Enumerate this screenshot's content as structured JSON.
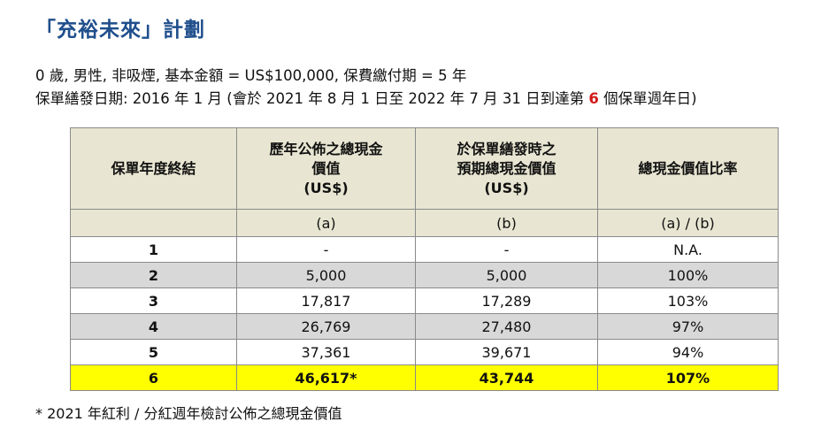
{
  "title": "「充裕未來」計劃",
  "description": {
    "line1": "0 歲, 男性, 非吸煙, 基本金額 = US$100,000, 保費繳付期 = 5 年",
    "line2_before": "保單繕發日期: 2016 年 1 月 (會於 2021 年 8 月 1 日至 2022 年 7 月 31 日到達第 ",
    "line2_highlight": "6",
    "line2_after": " 個保單週年日)"
  },
  "table": {
    "headers": [
      [
        "保單年度終結"
      ],
      [
        "歷年公佈之總現金",
        "價值",
        "(US$)"
      ],
      [
        "於保單繕發時之",
        "預期總現金價值",
        "(US$)"
      ],
      [
        "總現金價值比率"
      ]
    ],
    "subheaders": [
      "",
      "(a)",
      "(b)",
      "(a) / (b)"
    ],
    "rows": [
      {
        "year": "1",
        "declared": "-",
        "projected": "-",
        "ratio": "N.A."
      },
      {
        "year": "2",
        "declared": "5,000",
        "projected": "5,000",
        "ratio": "100%"
      },
      {
        "year": "3",
        "declared": "17,817",
        "projected": "17,289",
        "ratio": "103%"
      },
      {
        "year": "4",
        "declared": "26,769",
        "projected": "27,480",
        "ratio": "97%"
      },
      {
        "year": "5",
        "declared": "37,361",
        "projected": "39,671",
        "ratio": "94%"
      },
      {
        "year": "6",
        "declared": "46,617*",
        "projected": "43,744",
        "ratio": "107%"
      }
    ]
  },
  "footnote": "* 2021 年紅利 / 分紅週年檢討公佈之總現金價值",
  "colors": {
    "title": "#1f4e8c",
    "header_bg": "#e8e6d2",
    "stripe_grey": "#d8d8d8",
    "highlight_row": "#ffff00",
    "highlight_text": "#d11a1a"
  }
}
